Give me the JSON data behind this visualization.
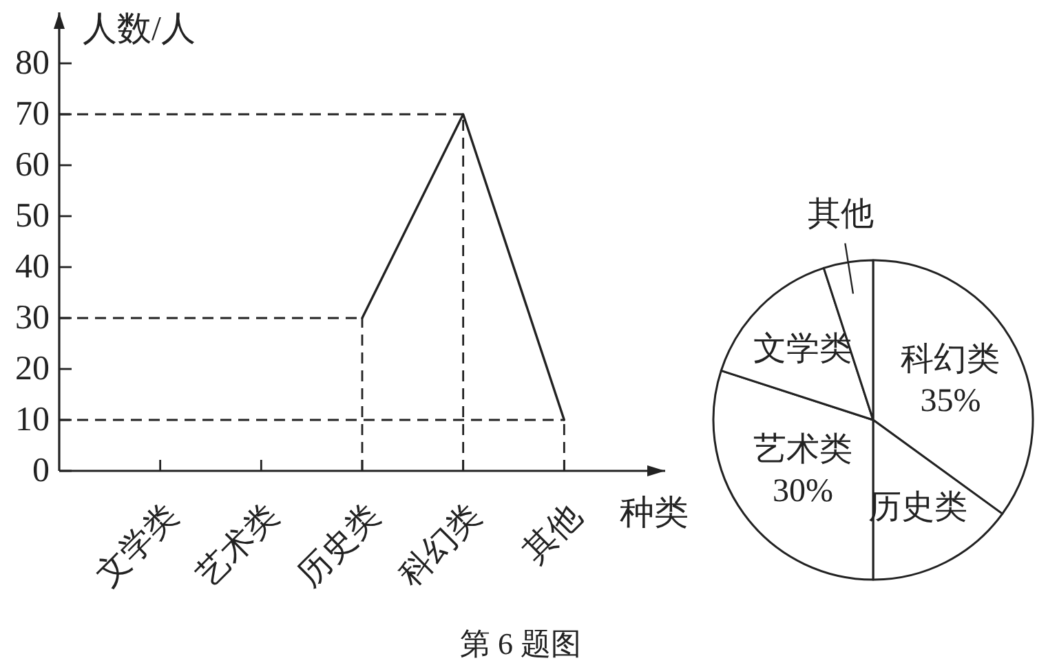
{
  "chart_data": [
    {
      "type": "line",
      "categories": [
        "文学类",
        "艺术类",
        "历史类",
        "科幻类",
        "其他"
      ],
      "values": [
        null,
        null,
        30,
        70,
        10
      ],
      "color": "#222222",
      "ylabel": "人数/人",
      "xlabel": "种类",
      "ylim": [
        0,
        90
      ],
      "yticks": [
        0,
        10,
        20,
        30,
        40,
        50,
        60,
        70,
        80
      ],
      "ref_lines": [
        {
          "axis": "y",
          "value": 70,
          "line_style": "dashed"
        },
        {
          "axis": "y",
          "value": 30,
          "line_style": "dashed"
        },
        {
          "axis": "y",
          "value": 10,
          "line_style": "dashed"
        },
        {
          "axis": "x",
          "value": "历史类",
          "line_style": "dashed"
        },
        {
          "axis": "x",
          "value": "科幻类",
          "line_style": "dashed"
        },
        {
          "axis": "x",
          "value": "其他",
          "line_style": "dashed"
        }
      ],
      "annotations": [
        "第 6 题图"
      ]
    },
    {
      "type": "pie",
      "categories": [
        "科幻类",
        "历史类",
        "艺术类",
        "文学类",
        "其他"
      ],
      "values": [
        35,
        15,
        30,
        15,
        5
      ],
      "colors": [
        "#ffffff",
        "#ffffff",
        "#ffffff",
        "#ffffff",
        "#ffffff"
      ],
      "value_labels": [
        "35%",
        null,
        "30%",
        null,
        null
      ]
    }
  ]
}
